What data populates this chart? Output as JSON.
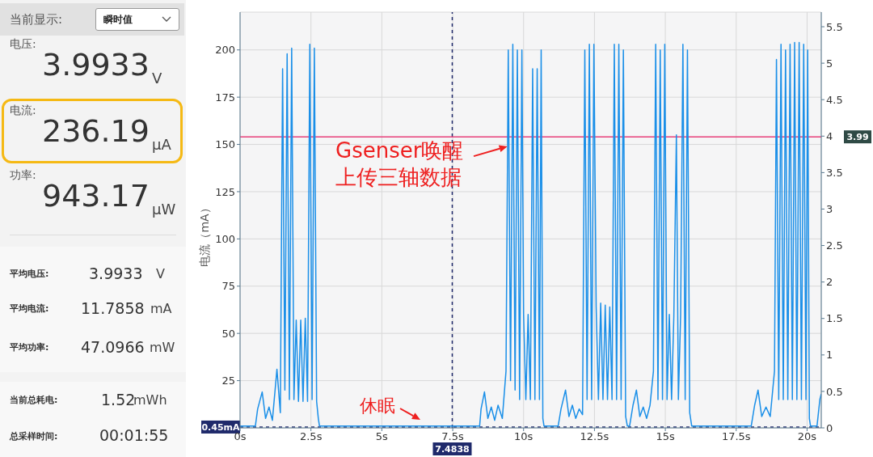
{
  "chart_data": [
    {
      "type": "other",
      "annotations": [
        "当前显示:",
        "瞬时值",
        "电压:",
        "3.9933",
        "V",
        "电流:",
        "236.19",
        "μA",
        "功率:",
        "943.17",
        "μW",
        "平均电压:",
        "3.9933",
        "V",
        "平均电流:",
        "11.7858",
        "mA",
        "平均功率:",
        "47.0966",
        "mW",
        "当前总耗电:",
        "1.52",
        "mWh",
        "总采样时间:",
        "00:01:55"
      ]
    },
    {
      "type": "line",
      "ylabel": "电流（mA）",
      "grid": true,
      "xlim": [
        0,
        20.5
      ],
      "xticks": [
        {
          "value": 0,
          "label": "0s"
        },
        {
          "value": 2.5,
          "label": "2.5s"
        },
        {
          "value": 5,
          "label": "5s"
        },
        {
          "value": 7.5,
          "label": "7.5s"
        },
        {
          "value": 10,
          "label": "10s"
        },
        {
          "value": 12.5,
          "label": "12.5s"
        },
        {
          "value": 15,
          "label": "15s"
        },
        {
          "value": 17.5,
          "label": "17.5s"
        },
        {
          "value": 20,
          "label": "20s"
        }
      ],
      "ylim": [
        0,
        220
      ],
      "yticks": [
        25,
        50,
        75,
        100,
        125,
        150,
        175,
        200
      ],
      "y2lim": [
        0,
        5.7
      ],
      "y2ticks": [
        0,
        0.5,
        1,
        1.5,
        2,
        2.5,
        3,
        3.5,
        4,
        4.5,
        5,
        5.5
      ],
      "series": [
        {
          "color": "#1a8fe8",
          "x": [
            0,
            0.54,
            0.62,
            0.78,
            0.9,
            1.02,
            1.14,
            1.3,
            1.42,
            1.5,
            1.58,
            1.66,
            1.74,
            1.82,
            1.9,
            1.98,
            2.06,
            2.14,
            2.22,
            2.3,
            2.38,
            2.46,
            2.54,
            2.62,
            2.7,
            2.76,
            2.8,
            8.45,
            8.5,
            8.62,
            8.74,
            8.86,
            8.98,
            9.1,
            9.25,
            9.38,
            9.46,
            9.54,
            9.62,
            9.7,
            9.78,
            9.86,
            9.94,
            10,
            10.08,
            10.16,
            10.24,
            10.32,
            10.4,
            10.48,
            10.56,
            10.62,
            10.68,
            10.72,
            11.22,
            11.32,
            11.48,
            11.6,
            11.72,
            11.84,
            11.96,
            12.08,
            12.16,
            12.24,
            12.32,
            12.4,
            12.48,
            12.56,
            12.64,
            12.72,
            12.8,
            12.88,
            12.96,
            13.04,
            13.12,
            13.2,
            13.28,
            13.36,
            13.44,
            13.52,
            13.6,
            13.66,
            13.74,
            13.86,
            13.98,
            14.1,
            14.22,
            14.34,
            14.46,
            14.58,
            14.66,
            14.74,
            14.82,
            14.9,
            14.98,
            15.06,
            15.14,
            15.22,
            15.3,
            15.39,
            15.46,
            15.54,
            15.62,
            15.7,
            15.78,
            15.86,
            15.93,
            18.03,
            18.15,
            18.27,
            18.4,
            18.55,
            18.7,
            18.85,
            18.92,
            19,
            19.08,
            19.16,
            19.24,
            19.32,
            19.4,
            19.48,
            19.56,
            19.64,
            19.72,
            19.8,
            19.88,
            19.96,
            20.02,
            20.08,
            20.12,
            20.35,
            20.45,
            20.5
          ],
          "values": [
            1,
            1,
            10,
            19,
            5,
            11,
            4,
            31,
            8,
            190,
            20,
            198,
            15,
            201,
            15,
            57,
            14,
            57,
            14,
            58,
            14,
            203,
            15,
            201,
            14,
            5,
            1,
            1,
            10,
            19,
            5,
            11,
            4,
            12,
            5,
            30,
            200,
            25,
            203,
            20,
            200,
            15,
            200,
            60,
            15,
            60,
            15,
            190,
            15,
            190,
            15,
            200,
            5,
            1,
            1,
            10,
            20,
            6,
            12,
            5,
            10,
            7,
            200,
            15,
            203,
            15,
            203,
            64,
            15,
            66,
            15,
            65,
            15,
            64,
            15,
            203,
            15,
            203,
            15,
            200,
            6,
            1,
            1,
            12,
            20,
            6,
            11,
            5,
            12,
            30,
            203,
            15,
            200,
            15,
            203,
            15,
            60,
            15,
            59,
            155,
            15,
            60,
            203,
            15,
            200,
            8,
            1,
            1,
            12,
            20,
            6,
            11,
            6,
            30,
            195,
            15,
            203,
            15,
            200,
            15,
            203,
            15,
            204,
            15,
            204,
            15,
            203,
            15,
            200,
            5,
            1,
            1,
            15,
            18
          ]
        }
      ],
      "ref_lines": [
        {
          "axis": "y",
          "value": 0.45,
          "label": "0.45mA",
          "color": "#1f2a6b",
          "line_style": "dashed"
        },
        {
          "axis": "x",
          "value": 7.4838,
          "label": "7.4838",
          "color": "#1f2a6b",
          "line_style": "dashed"
        },
        {
          "axis": "y2",
          "value": 3.99,
          "label": "3.99",
          "color": "#e8407a",
          "line_style": "solid"
        }
      ],
      "annotations": [
        {
          "text": "Gsenser唤醒上传三轴数据",
          "x": 9.43,
          "y": 149
        },
        "休眠"
      ]
    }
  ]
}
